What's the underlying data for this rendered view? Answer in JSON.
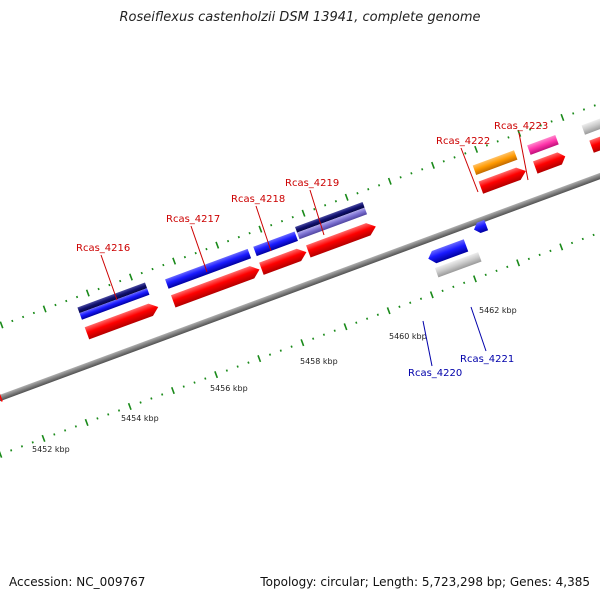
{
  "title": "Roseiflexus castenholzii DSM 13941, complete genome",
  "footer": {
    "accession": "Accession: NC_009767",
    "info": "Topology: circular; Length: 5,723,298 bp; Genes: 4,385"
  },
  "scale_labels": [
    "5452 kbp",
    "5454 kbp",
    "5456 kbp",
    "5458 kbp",
    "5460 kbp",
    "5462 kbp"
  ],
  "genes_forward": [
    "Rcas_4216",
    "Rcas_4217",
    "Rcas_4218",
    "Rcas_4219",
    "Rcas_4222",
    "Rcas_4223"
  ],
  "genes_reverse": [
    "Rcas_4220",
    "Rcas_4221"
  ],
  "colors": {
    "forward_label": "#cc0000",
    "reverse_label": "#0000aa",
    "tick": "#1a8a1a",
    "backbone": "#808080",
    "cds_red": "#ff0000",
    "blue": "#1a1aff",
    "navy": "#101070",
    "lavender": "#7a6fd0",
    "orange": "#ff9900",
    "pink": "#ff33aa",
    "gray": "#c8c8c8"
  }
}
